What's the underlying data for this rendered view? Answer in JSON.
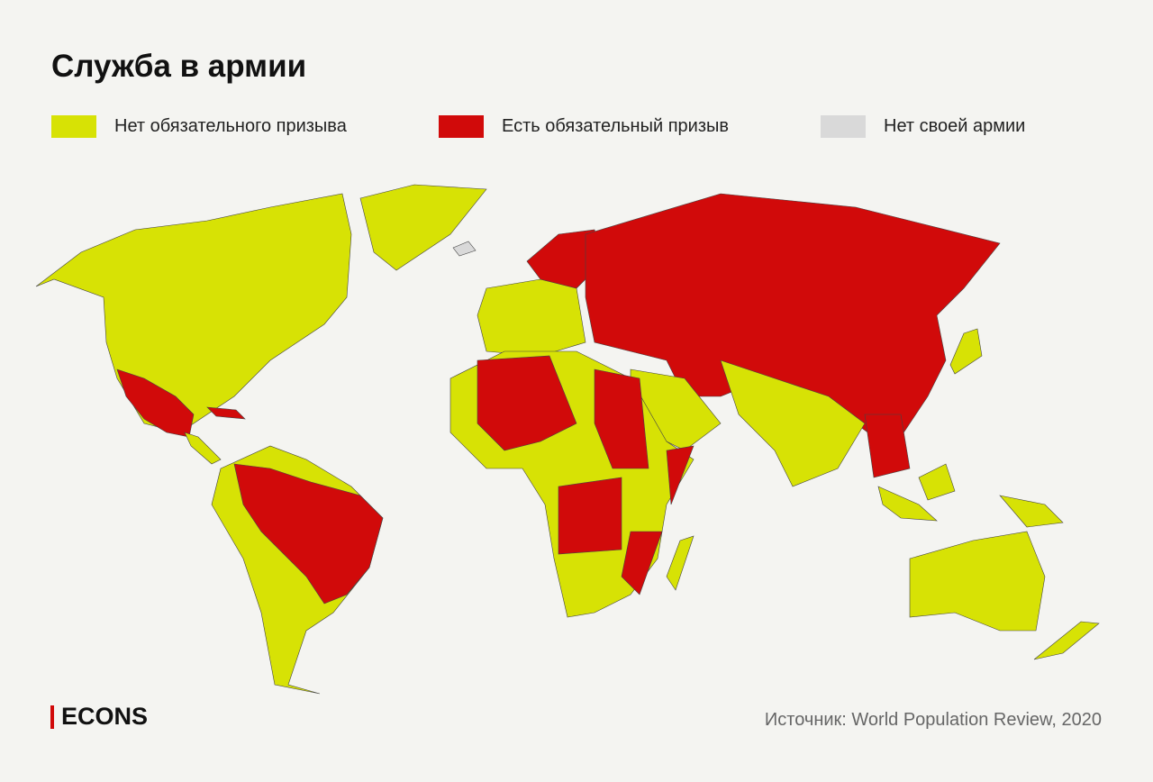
{
  "header": {
    "title": "Служба в армии"
  },
  "legend": [
    {
      "label": "Нет обязательного призыва",
      "color": "#d7e205"
    },
    {
      "label": "Есть обязательный призыв",
      "color": "#d10a0a"
    },
    {
      "label": "Нет своей армии",
      "color": "#d9d9d9"
    }
  ],
  "footer": {
    "logo": "ECONS",
    "source": "Источник: World Population Review, 2020"
  }
}
